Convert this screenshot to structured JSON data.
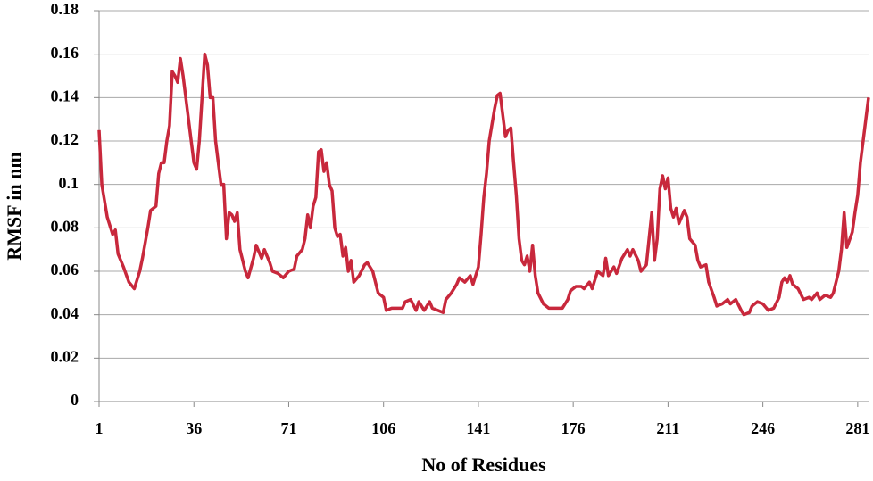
{
  "chart_data": {
    "type": "line",
    "xlabel": "No of Residues",
    "ylabel": "RMSF in nm",
    "x": [
      1,
      2,
      4,
      6,
      7,
      8,
      10,
      12,
      14,
      16,
      17,
      19,
      20,
      22,
      23,
      24,
      25,
      26,
      27,
      28,
      29,
      30,
      31,
      32,
      34,
      35,
      36,
      37,
      38,
      39,
      40,
      41,
      42,
      43,
      44,
      46,
      47,
      48,
      49,
      50,
      51,
      52,
      53,
      55,
      56,
      58,
      59,
      61,
      62,
      64,
      65,
      67,
      69,
      71,
      73,
      74,
      76,
      77,
      78,
      79,
      80,
      81,
      82,
      83,
      84,
      85,
      86,
      87,
      88,
      89,
      90,
      91,
      92,
      93,
      94,
      95,
      97,
      99,
      100,
      102,
      104,
      106,
      107,
      109,
      111,
      113,
      114,
      116,
      118,
      119,
      121,
      123,
      124,
      126,
      128,
      129,
      131,
      133,
      134,
      136,
      138,
      139,
      141,
      142,
      143,
      144,
      145,
      147,
      148,
      149,
      150,
      151,
      152,
      153,
      154,
      155,
      156,
      157,
      158,
      159,
      160,
      161,
      162,
      163,
      165,
      167,
      169,
      172,
      174,
      175,
      177,
      179,
      180,
      182,
      183,
      185,
      187,
      188,
      189,
      191,
      192,
      194,
      196,
      197,
      198,
      200,
      201,
      203,
      205,
      206,
      207,
      208,
      209,
      210,
      211,
      212,
      213,
      214,
      215,
      217,
      218,
      219,
      221,
      222,
      223,
      225,
      226,
      228,
      229,
      231,
      233,
      234,
      236,
      238,
      239,
      241,
      242,
      244,
      246,
      248,
      250,
      252,
      253,
      254,
      255,
      256,
      257,
      259,
      261,
      263,
      264,
      266,
      267,
      269,
      271,
      272,
      274,
      275,
      276,
      277,
      279,
      280,
      281,
      282,
      283,
      284,
      285
    ],
    "series": [
      {
        "name": "RMSF",
        "color": "#c8283c",
        "values": [
          0.125,
          0.1,
          0.085,
          0.077,
          0.079,
          0.068,
          0.062,
          0.055,
          0.052,
          0.06,
          0.066,
          0.08,
          0.088,
          0.09,
          0.105,
          0.11,
          0.11,
          0.12,
          0.127,
          0.152,
          0.15,
          0.147,
          0.158,
          0.15,
          0.13,
          0.12,
          0.11,
          0.107,
          0.12,
          0.14,
          0.16,
          0.155,
          0.14,
          0.14,
          0.12,
          0.1,
          0.1,
          0.075,
          0.087,
          0.086,
          0.083,
          0.087,
          0.07,
          0.06,
          0.057,
          0.066,
          0.072,
          0.066,
          0.07,
          0.064,
          0.06,
          0.059,
          0.057,
          0.06,
          0.061,
          0.067,
          0.07,
          0.075,
          0.086,
          0.08,
          0.09,
          0.094,
          0.115,
          0.116,
          0.106,
          0.11,
          0.1,
          0.097,
          0.08,
          0.076,
          0.077,
          0.067,
          0.071,
          0.06,
          0.065,
          0.055,
          0.058,
          0.063,
          0.064,
          0.06,
          0.05,
          0.048,
          0.042,
          0.043,
          0.043,
          0.043,
          0.046,
          0.047,
          0.042,
          0.046,
          0.042,
          0.046,
          0.043,
          0.042,
          0.041,
          0.047,
          0.05,
          0.054,
          0.057,
          0.055,
          0.058,
          0.054,
          0.062,
          0.077,
          0.094,
          0.105,
          0.12,
          0.135,
          0.141,
          0.142,
          0.132,
          0.122,
          0.125,
          0.126,
          0.11,
          0.095,
          0.075,
          0.065,
          0.063,
          0.067,
          0.06,
          0.072,
          0.058,
          0.05,
          0.045,
          0.043,
          0.043,
          0.043,
          0.047,
          0.051,
          0.053,
          0.053,
          0.052,
          0.055,
          0.052,
          0.06,
          0.058,
          0.066,
          0.058,
          0.062,
          0.059,
          0.066,
          0.07,
          0.067,
          0.07,
          0.065,
          0.06,
          0.063,
          0.087,
          0.065,
          0.075,
          0.098,
          0.104,
          0.098,
          0.103,
          0.089,
          0.085,
          0.089,
          0.082,
          0.088,
          0.085,
          0.075,
          0.072,
          0.065,
          0.062,
          0.063,
          0.055,
          0.048,
          0.044,
          0.045,
          0.047,
          0.045,
          0.047,
          0.042,
          0.04,
          0.041,
          0.044,
          0.046,
          0.045,
          0.042,
          0.043,
          0.048,
          0.055,
          0.057,
          0.055,
          0.058,
          0.054,
          0.052,
          0.047,
          0.048,
          0.047,
          0.05,
          0.047,
          0.049,
          0.048,
          0.05,
          0.06,
          0.07,
          0.087,
          0.071,
          0.078,
          0.087,
          0.095,
          0.11,
          0.12,
          0.13,
          0.14
        ]
      }
    ],
    "xlim": [
      1,
      285
    ],
    "xticks": [
      1,
      36,
      71,
      106,
      141,
      176,
      211,
      246,
      281
    ],
    "ylim": [
      0,
      0.18
    ],
    "yticks": [
      0,
      0.02,
      0.04,
      0.06,
      0.08,
      0.1,
      0.12,
      0.14,
      0.16,
      0.18
    ],
    "grid": true
  }
}
